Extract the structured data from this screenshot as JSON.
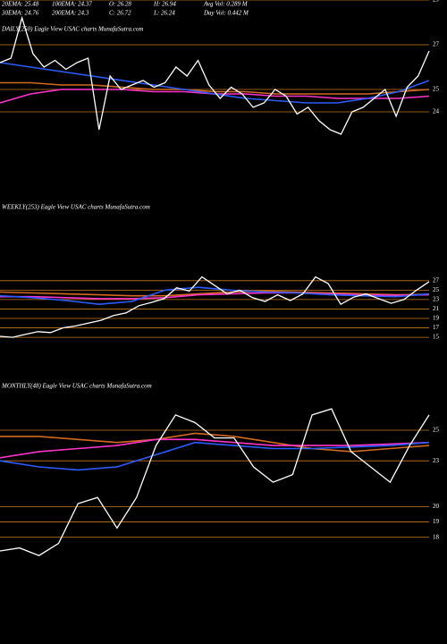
{
  "header": {
    "stats": [
      [
        "20EMA: 25.48",
        "100EMA: 24.37",
        "O: 26.28",
        "H: 26.94",
        "Avg Vol: 0.289  M"
      ],
      [
        "30EMA: 24.76",
        "200EMA: 24.3",
        "C: 26.72",
        "L: 26.24",
        "Day Vol: 0.442  M"
      ]
    ]
  },
  "chart_data": [
    {
      "type": "line",
      "title": "DAILY(250) Eagle  View  USAC charts MunafaSutra.com",
      "ylim": [
        21.4,
        29
      ],
      "yticks": [
        29,
        27,
        25,
        24
      ],
      "level_color": "#c8781e",
      "series": [
        {
          "name": "close",
          "color": "#ffffff",
          "values": [
            26.2,
            26.4,
            28.2,
            26.6,
            26.0,
            26.3,
            25.9,
            26.2,
            26.4,
            23.2,
            25.6,
            25.0,
            25.2,
            25.4,
            25.1,
            25.3,
            26.0,
            25.6,
            26.3,
            25.2,
            24.6,
            25.1,
            24.8,
            24.2,
            24.4,
            25.0,
            24.7,
            23.9,
            24.2,
            23.6,
            23.2,
            23.0,
            24.0,
            24.2,
            24.6,
            25.0,
            23.8,
            25.1,
            25.6,
            26.72
          ]
        },
        {
          "name": "blue",
          "color": "#2a5cff",
          "values": [
            26.2,
            26.0,
            25.8,
            25.6,
            25.4,
            25.2,
            25.0,
            24.8,
            24.6,
            24.5,
            24.4,
            24.4,
            24.6,
            24.9,
            25.4
          ]
        },
        {
          "name": "magenta",
          "color": "#ff33cc",
          "values": [
            24.4,
            24.8,
            25.0,
            25.0,
            25.0,
            24.9,
            24.9,
            24.8,
            24.8,
            24.7,
            24.7,
            24.6,
            24.6,
            24.6,
            24.7
          ]
        },
        {
          "name": "orange",
          "color": "#d2691e",
          "values": [
            25.3,
            25.3,
            25.2,
            25.2,
            25.1,
            25.0,
            25.0,
            24.9,
            24.9,
            24.8,
            24.8,
            24.8,
            24.8,
            24.9,
            25.0
          ]
        }
      ]
    },
    {
      "type": "line",
      "title": "WEEKLY(253) Eagle  View  USAC charts MunafaSutra.com",
      "ylim": [
        8,
        41
      ],
      "yticks": [
        27,
        25,
        23,
        21,
        19,
        17,
        15
      ],
      "level_color": "#c8781e",
      "series": [
        {
          "name": "close",
          "color": "#ffffff",
          "values": [
            15.2,
            15.0,
            15.6,
            16.2,
            16.0,
            17.0,
            17.4,
            18.0,
            18.6,
            19.6,
            20.2,
            21.7,
            22.4,
            23.2,
            25.5,
            24.8,
            27.8,
            26.0,
            24.2,
            25.0,
            23.4,
            22.6,
            24.0,
            22.8,
            24.2,
            27.8,
            26.4,
            22.0,
            23.5,
            24.2,
            23.2,
            22.2,
            23.0,
            25.0,
            26.8
          ]
        },
        {
          "name": "blue",
          "color": "#2a5cff",
          "values": [
            23.8,
            23.4,
            22.8,
            22.0,
            22.6,
            25.0,
            25.6,
            25.0,
            24.6,
            24.4,
            24.0,
            23.8,
            23.6,
            24.2
          ]
        },
        {
          "name": "magenta",
          "color": "#ff33cc",
          "values": [
            23.6,
            23.6,
            23.4,
            23.2,
            23.2,
            23.4,
            24.0,
            24.2,
            24.4,
            24.4,
            24.2,
            24.0,
            23.9,
            24.0
          ]
        },
        {
          "name": "orange",
          "color": "#d2691e",
          "values": [
            24.6,
            24.4,
            24.2,
            24.0,
            23.8,
            23.8,
            24.2,
            24.6,
            24.8,
            24.6,
            24.4,
            24.2,
            24.0,
            24.1
          ]
        }
      ]
    },
    {
      "type": "line",
      "title": "MONTHLY(48) Eagle  View  USAC charts MunafaSutra.com",
      "ylim": [
        14,
        27.4
      ],
      "yticks": [
        25,
        23,
        20,
        19,
        18
      ],
      "level_color": "#c8781e",
      "series": [
        {
          "name": "close",
          "color": "#ffffff",
          "values": [
            17.1,
            17.3,
            16.8,
            17.6,
            20.2,
            20.6,
            18.6,
            20.6,
            24.0,
            26.0,
            25.5,
            24.5,
            24.5,
            22.6,
            21.6,
            22.1,
            26.0,
            26.4,
            23.6,
            22.6,
            21.6,
            24.0,
            26.0
          ]
        },
        {
          "name": "blue",
          "color": "#2a5cff",
          "values": [
            23.0,
            22.6,
            22.4,
            22.6,
            23.4,
            24.2,
            24.0,
            23.8,
            23.8,
            23.9,
            24.0,
            24.2
          ]
        },
        {
          "name": "magenta",
          "color": "#ff33cc",
          "values": [
            23.2,
            23.6,
            23.8,
            24.0,
            24.4,
            24.4,
            24.2,
            24.0,
            24.0,
            24.0,
            24.1,
            24.2
          ]
        },
        {
          "name": "orange",
          "color": "#d2691e",
          "values": [
            24.6,
            24.6,
            24.4,
            24.2,
            24.4,
            24.8,
            24.6,
            24.2,
            23.8,
            23.6,
            23.8,
            24.0
          ]
        }
      ]
    }
  ]
}
